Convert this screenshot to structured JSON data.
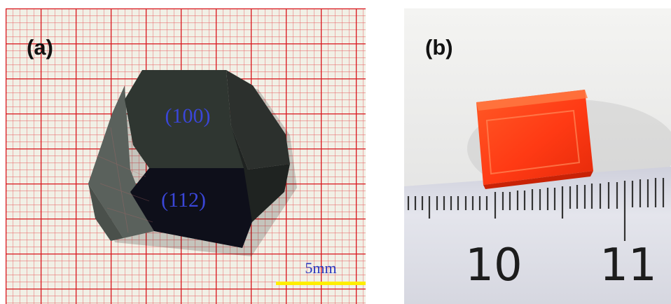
{
  "figure": {
    "panel_a": {
      "label": "(a)",
      "faces": [
        "(100)",
        "(112)"
      ],
      "scale_bar": "5mm",
      "colors": {
        "grid_line": "#e0282c",
        "paper": "#f1f0e6",
        "crystal": "#1a1e1c",
        "face_text": "#3a46d8",
        "scale_bar": "#ffee00"
      }
    },
    "panel_b": {
      "label": "(b)",
      "ruler_numbers": [
        "10",
        "11"
      ],
      "colors": {
        "crystal": "#ff4a1e",
        "ruler": "#dcdde6",
        "background": "#ececec"
      }
    }
  }
}
